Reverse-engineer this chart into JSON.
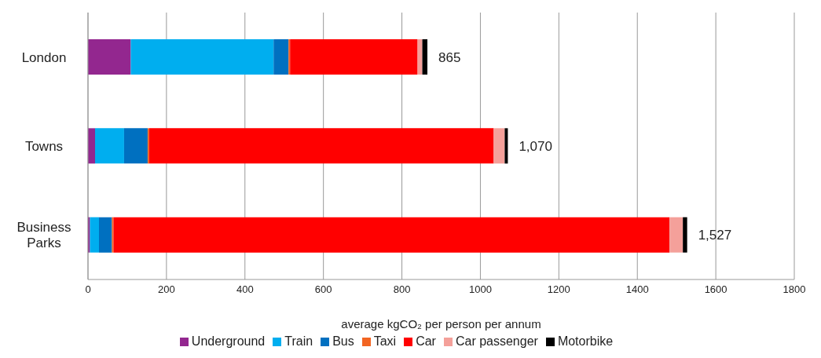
{
  "chart_data": {
    "type": "bar",
    "orientation": "horizontal",
    "stacked": true,
    "xlabel": "average kgCO₂ per person per annum",
    "categories": [
      "London",
      "Towns",
      "Business\nParks"
    ],
    "series": [
      {
        "name": "Underground",
        "color": "#93278f",
        "values": [
          109,
          18,
          5
        ]
      },
      {
        "name": "Train",
        "color": "#00aeef",
        "values": [
          364,
          74,
          23
        ]
      },
      {
        "name": "Bus",
        "color": "#0070c0",
        "values": [
          38,
          60,
          33
        ]
      },
      {
        "name": "Taxi",
        "color": "#f26522",
        "values": [
          4,
          4,
          4
        ]
      },
      {
        "name": "Car",
        "color": "#ff0000",
        "values": [
          325,
          878,
          1417
        ]
      },
      {
        "name": "Car passenger",
        "color": "#f4a09a",
        "values": [
          12,
          28,
          34
        ]
      },
      {
        "name": "Motorbike",
        "color": "#000000",
        "values": [
          13,
          8,
          11
        ]
      }
    ],
    "totals": [
      "865",
      "1,070",
      "1,527"
    ],
    "xlim": [
      0,
      1800
    ],
    "xticks": [
      0,
      200,
      400,
      600,
      800,
      1000,
      1200,
      1400,
      1600,
      1800
    ],
    "grid": "x",
    "legend": "bottom"
  }
}
